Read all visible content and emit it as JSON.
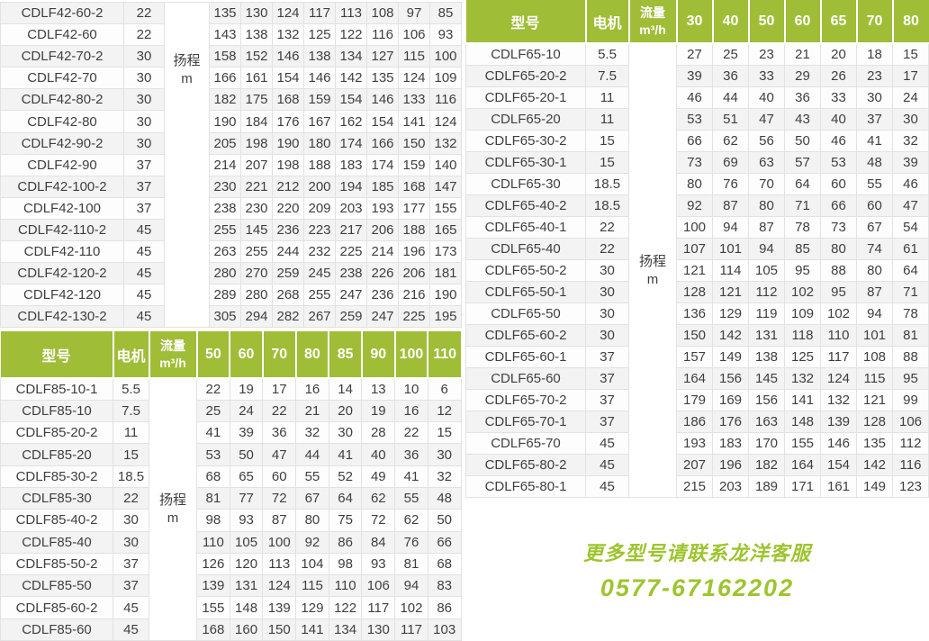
{
  "page": {
    "header_green": "#a0bd37",
    "accent_text_green": "#9ec42f",
    "row_stripe": "#f3f3f3",
    "border_color": "#e2e2e2",
    "text_color": "#3f3f3f"
  },
  "labels": {
    "model": "型号",
    "motor": "电机",
    "flow_line1": "流量",
    "flow_line2": "m³/h",
    "lift_line1": "扬程",
    "lift_line2": "m"
  },
  "tables": {
    "cdlf42": {
      "series": "CDLF42",
      "has_header": false,
      "rows": [
        {
          "model": "CDLF42-60-2",
          "motor": "22",
          "values": [
            135,
            130,
            124,
            117,
            113,
            108,
            97,
            85
          ]
        },
        {
          "model": "CDLF42-60",
          "motor": "22",
          "values": [
            143,
            138,
            132,
            125,
            122,
            116,
            106,
            93
          ]
        },
        {
          "model": "CDLF42-70-2",
          "motor": "30",
          "values": [
            158,
            152,
            146,
            138,
            134,
            127,
            115,
            100
          ]
        },
        {
          "model": "CDLF42-70",
          "motor": "30",
          "values": [
            166,
            161,
            154,
            146,
            142,
            135,
            124,
            109
          ]
        },
        {
          "model": "CDLF42-80-2",
          "motor": "30",
          "values": [
            182,
            175,
            168,
            159,
            154,
            146,
            133,
            116
          ]
        },
        {
          "model": "CDLF42-80",
          "motor": "30",
          "values": [
            190,
            184,
            176,
            167,
            162,
            154,
            141,
            124
          ]
        },
        {
          "model": "CDLF42-90-2",
          "motor": "30",
          "values": [
            205,
            198,
            190,
            180,
            174,
            166,
            150,
            132
          ]
        },
        {
          "model": "CDLF42-90",
          "motor": "37",
          "values": [
            214,
            207,
            198,
            188,
            183,
            174,
            159,
            140
          ]
        },
        {
          "model": "CDLF42-100-2",
          "motor": "37",
          "values": [
            230,
            221,
            212,
            200,
            194,
            185,
            168,
            147
          ]
        },
        {
          "model": "CDLF42-100",
          "motor": "37",
          "values": [
            238,
            230,
            220,
            209,
            203,
            193,
            177,
            155
          ]
        },
        {
          "model": "CDLF42-110-2",
          "motor": "45",
          "values": [
            255,
            145,
            236,
            223,
            217,
            206,
            188,
            165
          ]
        },
        {
          "model": "CDLF42-110",
          "motor": "45",
          "values": [
            263,
            255,
            244,
            232,
            225,
            214,
            196,
            173
          ]
        },
        {
          "model": "CDLF42-120-2",
          "motor": "45",
          "values": [
            280,
            270,
            259,
            245,
            238,
            226,
            206,
            181
          ]
        },
        {
          "model": "CDLF42-120",
          "motor": "45",
          "values": [
            289,
            280,
            268,
            255,
            247,
            236,
            216,
            190
          ]
        },
        {
          "model": "CDLF42-130-2",
          "motor": "45",
          "values": [
            305,
            294,
            282,
            267,
            259,
            247,
            225,
            195
          ]
        }
      ]
    },
    "cdlf85": {
      "series": "CDLF85",
      "has_header": true,
      "flows": [
        "50",
        "60",
        "70",
        "80",
        "85",
        "90",
        "100",
        "110"
      ],
      "rows": [
        {
          "model": "CDLF85-10-1",
          "motor": "5.5",
          "values": [
            22,
            19,
            17,
            16,
            14,
            13,
            10,
            6
          ]
        },
        {
          "model": "CDLF85-10",
          "motor": "7.5",
          "values": [
            25,
            24,
            22,
            21,
            20,
            19,
            16,
            12
          ]
        },
        {
          "model": "CDLF85-20-2",
          "motor": "11",
          "values": [
            41,
            39,
            36,
            32,
            30,
            28,
            22,
            15
          ]
        },
        {
          "model": "CDLF85-20",
          "motor": "15",
          "values": [
            53,
            50,
            47,
            44,
            41,
            40,
            36,
            30
          ]
        },
        {
          "model": "CDLF85-30-2",
          "motor": "18.5",
          "values": [
            68,
            65,
            60,
            55,
            52,
            49,
            41,
            32
          ]
        },
        {
          "model": "CDLF85-30",
          "motor": "22",
          "values": [
            81,
            77,
            72,
            67,
            64,
            62,
            55,
            48
          ]
        },
        {
          "model": "CDLF85-40-2",
          "motor": "30",
          "values": [
            98,
            93,
            87,
            80,
            75,
            72,
            62,
            50
          ]
        },
        {
          "model": "CDLF85-40",
          "motor": "30",
          "values": [
            110,
            105,
            100,
            92,
            86,
            84,
            76,
            66
          ]
        },
        {
          "model": "CDLF85-50-2",
          "motor": "37",
          "values": [
            126,
            120,
            113,
            104,
            98,
            93,
            81,
            68
          ]
        },
        {
          "model": "CDLF85-50",
          "motor": "37",
          "values": [
            139,
            131,
            124,
            115,
            110,
            106,
            94,
            83
          ]
        },
        {
          "model": "CDLF85-60-2",
          "motor": "45",
          "values": [
            155,
            148,
            139,
            129,
            122,
            117,
            102,
            86
          ]
        },
        {
          "model": "CDLF85-60",
          "motor": "45",
          "values": [
            168,
            160,
            150,
            141,
            134,
            130,
            117,
            103
          ]
        }
      ]
    },
    "cdlf65": {
      "series": "CDLF65",
      "has_header": true,
      "flows": [
        "30",
        "40",
        "50",
        "60",
        "65",
        "70",
        "80"
      ],
      "rows": [
        {
          "model": "CDLF65-10",
          "motor": "5.5",
          "values": [
            27,
            25,
            23,
            21,
            20,
            18,
            15
          ]
        },
        {
          "model": "CDLF65-20-2",
          "motor": "7.5",
          "values": [
            39,
            36,
            33,
            29,
            26,
            23,
            17
          ]
        },
        {
          "model": "CDLF65-20-1",
          "motor": "11",
          "values": [
            46,
            44,
            40,
            36,
            33,
            30,
            24
          ]
        },
        {
          "model": "CDLF65-20",
          "motor": "11",
          "values": [
            53,
            51,
            47,
            43,
            40,
            37,
            30
          ]
        },
        {
          "model": "CDLF65-30-2",
          "motor": "15",
          "values": [
            66,
            62,
            56,
            50,
            46,
            41,
            32
          ]
        },
        {
          "model": "CDLF65-30-1",
          "motor": "15",
          "values": [
            73,
            69,
            63,
            57,
            53,
            48,
            39
          ]
        },
        {
          "model": "CDLF65-30",
          "motor": "18.5",
          "values": [
            80,
            76,
            70,
            64,
            60,
            55,
            46
          ]
        },
        {
          "model": "CDLF65-40-2",
          "motor": "18.5",
          "values": [
            92,
            87,
            80,
            71,
            66,
            60,
            47
          ]
        },
        {
          "model": "CDLF65-40-1",
          "motor": "22",
          "values": [
            100,
            94,
            87,
            78,
            73,
            67,
            54
          ]
        },
        {
          "model": "CDLF65-40",
          "motor": "22",
          "values": [
            107,
            101,
            94,
            85,
            80,
            74,
            61
          ]
        },
        {
          "model": "CDLF65-50-2",
          "motor": "30",
          "values": [
            121,
            114,
            105,
            95,
            88,
            80,
            64
          ]
        },
        {
          "model": "CDLF65-50-1",
          "motor": "30",
          "values": [
            128,
            121,
            112,
            102,
            95,
            87,
            71
          ]
        },
        {
          "model": "CDLF65-50",
          "motor": "30",
          "values": [
            136,
            129,
            119,
            109,
            102,
            94,
            78
          ]
        },
        {
          "model": "CDLF65-60-2",
          "motor": "30",
          "values": [
            150,
            142,
            131,
            118,
            110,
            101,
            81
          ]
        },
        {
          "model": "CDLF65-60-1",
          "motor": "37",
          "values": [
            157,
            149,
            138,
            125,
            117,
            108,
            88
          ]
        },
        {
          "model": "CDLF65-60",
          "motor": "37",
          "values": [
            164,
            156,
            145,
            132,
            124,
            115,
            95
          ]
        },
        {
          "model": "CDLF65-70-2",
          "motor": "37",
          "values": [
            179,
            169,
            156,
            141,
            132,
            121,
            99
          ]
        },
        {
          "model": "CDLF65-70-1",
          "motor": "37",
          "values": [
            186,
            176,
            163,
            148,
            139,
            128,
            106
          ]
        },
        {
          "model": "CDLF65-70",
          "motor": "45",
          "values": [
            193,
            183,
            170,
            155,
            146,
            135,
            112
          ]
        },
        {
          "model": "CDLF65-80-2",
          "motor": "45",
          "values": [
            207,
            196,
            182,
            164,
            154,
            142,
            116
          ]
        },
        {
          "model": "CDLF65-80-1",
          "motor": "45",
          "values": [
            215,
            203,
            189,
            171,
            161,
            149,
            123
          ]
        }
      ]
    }
  },
  "footer": {
    "line1": "更多型号请联系龙洋客服",
    "line2": "0577-67162202"
  }
}
